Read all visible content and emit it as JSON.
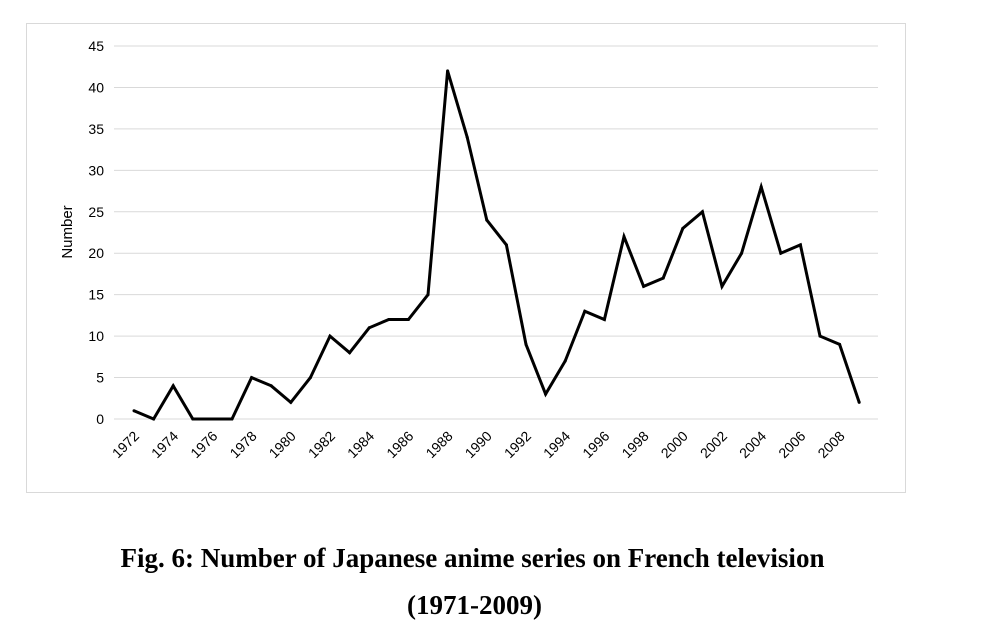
{
  "caption": {
    "line1": "Fig. 6: Number of Japanese anime series on French television",
    "line2": "(1971-2009)"
  },
  "chart_data": {
    "type": "line",
    "title": "",
    "xlabel": "",
    "ylabel": "Number",
    "ylim": [
      0,
      45
    ],
    "yticks": [
      0,
      5,
      10,
      15,
      20,
      25,
      30,
      35,
      40,
      45
    ],
    "xtick_labels": [
      "1972",
      "1974",
      "1976",
      "1978",
      "1980",
      "1982",
      "1984",
      "1986",
      "1988",
      "1990",
      "1992",
      "1994",
      "1996",
      "1998",
      "2000",
      "2002",
      "2004",
      "2006",
      "2008"
    ],
    "grid": true,
    "legend": "none",
    "line_color": "#000000",
    "series": [
      {
        "x": [
          1972,
          1973,
          1974,
          1975,
          1976,
          1977,
          1978,
          1979,
          1980,
          1981,
          1982,
          1983,
          1984,
          1985,
          1986,
          1987,
          1988,
          1989,
          1990,
          1991,
          1992,
          1993,
          1994,
          1995,
          1996,
          1997,
          1998,
          1999,
          2000,
          2001,
          2002,
          2003,
          2004,
          2005,
          2006,
          2007,
          2008,
          2009
        ],
        "values": [
          1,
          0,
          4,
          0,
          0,
          0,
          5,
          4,
          2,
          5,
          10,
          8,
          11,
          12,
          12,
          15,
          42,
          34,
          24,
          21,
          9,
          3,
          7,
          13,
          12,
          22,
          16,
          17,
          23,
          25,
          16,
          20,
          28,
          20,
          21,
          10,
          9,
          2
        ]
      }
    ]
  }
}
